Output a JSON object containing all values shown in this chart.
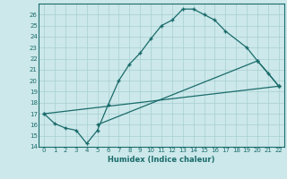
{
  "line1_x": [
    0,
    1,
    2,
    3,
    4,
    5,
    6,
    7,
    8,
    9,
    10,
    11,
    12,
    13,
    14,
    15,
    16,
    17,
    19,
    20,
    21,
    22
  ],
  "line1_y": [
    17,
    16.1,
    15.7,
    15.5,
    14.3,
    15.5,
    17.8,
    20.0,
    21.5,
    22.5,
    23.8,
    25.0,
    25.5,
    26.5,
    26.5,
    26.0,
    25.5,
    24.5,
    23.0,
    21.8,
    20.7,
    19.5
  ],
  "line2_x": [
    0,
    22
  ],
  "line2_y": [
    17.0,
    19.5
  ],
  "line3_x": [
    5,
    20,
    22
  ],
  "line3_y": [
    16.0,
    21.8,
    19.5
  ],
  "line_color": "#1a6b6b",
  "bg_color": "#cce8ea",
  "grid_color": "#a8cfd1",
  "xlabel": "Humidex (Indice chaleur)",
  "ylim": [
    14,
    27
  ],
  "xlim": [
    -0.5,
    22.5
  ],
  "yticks": [
    14,
    15,
    16,
    17,
    18,
    19,
    20,
    21,
    22,
    23,
    24,
    25,
    26
  ],
  "xticks": [
    0,
    1,
    2,
    3,
    4,
    5,
    6,
    7,
    8,
    9,
    10,
    11,
    12,
    13,
    14,
    15,
    16,
    17,
    18,
    19,
    20,
    21,
    22
  ],
  "xtick_labels": [
    "0",
    "1",
    "2",
    "3",
    "4",
    "5",
    "6",
    "7",
    "8",
    "9",
    "10",
    "11",
    "12",
    "13",
    "14",
    "15",
    "16",
    "17",
    "18",
    "19",
    "20",
    "21",
    "22"
  ]
}
